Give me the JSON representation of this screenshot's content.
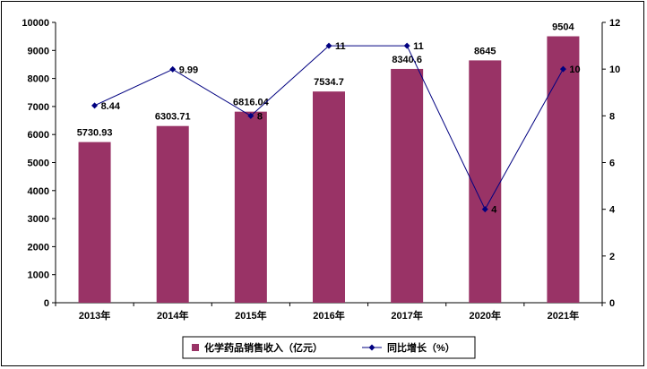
{
  "chart_data": {
    "type": "bar",
    "categories": [
      "2013年",
      "2014年",
      "2015年",
      "2016年",
      "2017年",
      "2020年",
      "2021年"
    ],
    "series": [
      {
        "name": "化学药品销售收入（亿元）",
        "type": "bar",
        "axis": "left",
        "values": [
          5730.93,
          6303.71,
          6816.04,
          7534.7,
          8340.6,
          8645,
          9504
        ],
        "labels": [
          "5730.93",
          "6303.71",
          "6816.04",
          "7534.7",
          "8340.6",
          "8645",
          "9504"
        ],
        "color": "#993366"
      },
      {
        "name": "同比增长（%）",
        "type": "line",
        "axis": "right",
        "values": [
          8.44,
          9.99,
          8,
          11,
          11,
          4,
          10
        ],
        "labels": [
          "8.44",
          "9.99",
          "8",
          "11",
          "11",
          "4",
          "10"
        ],
        "color": "#000080"
      }
    ],
    "ylim": [
      0,
      10000
    ],
    "yticks": [
      "0",
      "1000",
      "2000",
      "3000",
      "4000",
      "5000",
      "6000",
      "7000",
      "8000",
      "9000",
      "10000"
    ],
    "y2lim": [
      0,
      12
    ],
    "y2ticks": [
      "0",
      "2",
      "4",
      "6",
      "8",
      "10",
      "12"
    ],
    "grid": false,
    "legend_position": "bottom"
  }
}
